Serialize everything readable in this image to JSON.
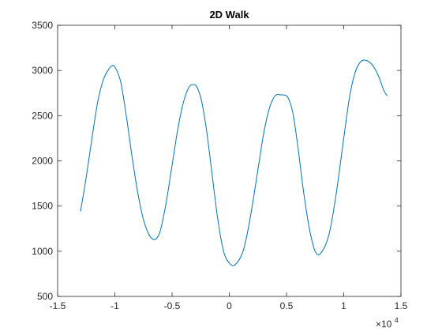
{
  "chart_data": {
    "type": "line",
    "title": "2D Walk",
    "xlabel": "",
    "ylabel": "",
    "xlim": [
      -15000,
      15000
    ],
    "ylim": [
      500,
      3500
    ],
    "x_exponent_label": {
      "base": "×10",
      "exponent": "4"
    },
    "xticks": [
      -15000,
      -10000,
      -5000,
      0,
      5000,
      10000,
      15000
    ],
    "xtick_labels": [
      "-1.5",
      "-1",
      "-0.5",
      "0",
      "0.5",
      "1",
      "1.5"
    ],
    "yticks": [
      500,
      1000,
      1500,
      2000,
      2500,
      3000,
      3500
    ],
    "ytick_labels": [
      "500",
      "1000",
      "1500",
      "2000",
      "2500",
      "3000",
      "3500"
    ],
    "grid": false,
    "box": true,
    "series": [
      {
        "color": "#0072BD",
        "x": [
          -13000,
          -12500,
          -12000,
          -11500,
          -11000,
          -10500,
          -10250,
          -10000,
          -9500,
          -9000,
          -8500,
          -8000,
          -7500,
          -7000,
          -6600,
          -6300,
          -6000,
          -5500,
          -5000,
          -4500,
          -4000,
          -3500,
          -3000,
          -2700,
          -2400,
          -2000,
          -1500,
          -1000,
          -500,
          0,
          500,
          1200,
          1800,
          2500,
          3000,
          3500,
          4000,
          4500,
          5000,
          5300,
          5600,
          6000,
          6500,
          7000,
          7500,
          8000,
          8700,
          9300,
          10000,
          10500,
          11000,
          11500,
          12000,
          12500,
          13000,
          13500,
          13800
        ],
        "y": [
          1440,
          1820,
          2250,
          2650,
          2900,
          3020,
          3050,
          3040,
          2880,
          2500,
          2050,
          1650,
          1350,
          1180,
          1130,
          1150,
          1240,
          1550,
          1950,
          2350,
          2650,
          2820,
          2840,
          2780,
          2650,
          2350,
          1850,
          1350,
          1000,
          870,
          850,
          1000,
          1350,
          1900,
          2300,
          2580,
          2720,
          2730,
          2720,
          2650,
          2500,
          2150,
          1650,
          1250,
          1000,
          980,
          1180,
          1600,
          2250,
          2700,
          2980,
          3100,
          3110,
          3060,
          2950,
          2780,
          2720
        ]
      }
    ]
  }
}
